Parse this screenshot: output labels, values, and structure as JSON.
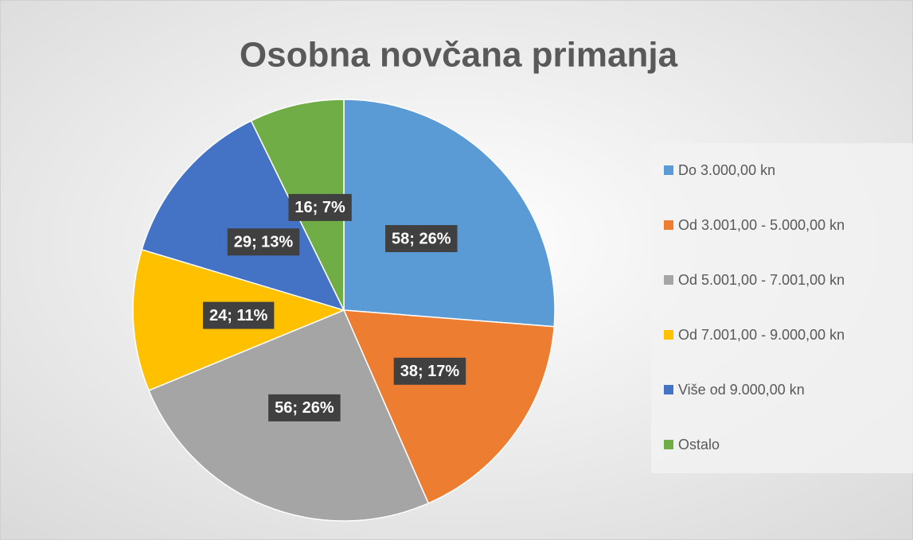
{
  "chart_data": {
    "type": "pie",
    "title": "Osobna novčana primanja",
    "categories": [
      "Do 3.000,00 kn",
      "Od 3.001,00 - 5.000,00 kn",
      "Od 5.001,00 - 7.001,00 kn",
      "Od 7.001,00 - 9.000,00 kn",
      "Više od 9.000,00 kn",
      "Ostalo"
    ],
    "values": [
      58,
      38,
      56,
      24,
      29,
      16
    ],
    "value_labels": [
      "58; 26%",
      "38; 17%",
      "56; 26%",
      "24; 11%",
      "29; 13%",
      "16; 7%"
    ],
    "colors": [
      "#5b9bd5",
      "#ed7d31",
      "#a5a5a5",
      "#ffc000",
      "#4472c4",
      "#70ad47"
    ],
    "legend": "right"
  }
}
